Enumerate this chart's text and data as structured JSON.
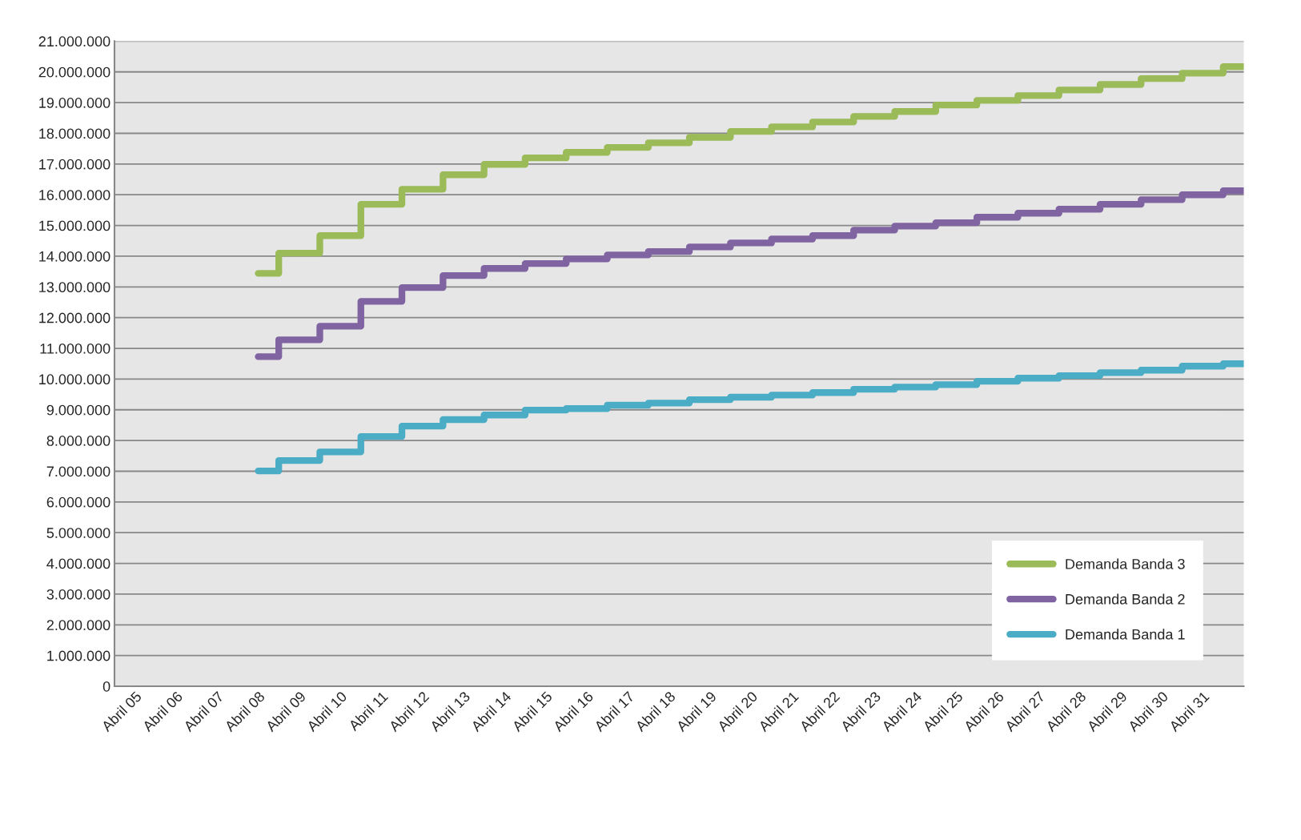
{
  "chart_data": {
    "type": "step",
    "categories": [
      "Abril 05",
      "Abril 06",
      "Abril 07",
      "Abril 08",
      "Abril 09",
      "Abril 10",
      "Abril 11",
      "Abril 12",
      "Abril 13",
      "Abril 14",
      "Abril 15",
      "Abril 16",
      "Abril 17",
      "Abril 18",
      "Abril 19",
      "Abril 20",
      "Abril 21",
      "Abril 22",
      "Abril 23",
      "Abril 24",
      "Abril 25",
      "Abril 26",
      "Abril 27",
      "Abril 28",
      "Abril 29",
      "Abril 30",
      "Abril 31",
      null
    ],
    "series": [
      {
        "name": "Demanda Banda 3",
        "color": "#9bbb59",
        "values": [
          null,
          null,
          null,
          13440000,
          14100000,
          14670000,
          15690000,
          16180000,
          16650000,
          16990000,
          17200000,
          17380000,
          17540000,
          17690000,
          17870000,
          18060000,
          18210000,
          18370000,
          18550000,
          18710000,
          18920000,
          19070000,
          19230000,
          19410000,
          19590000,
          19780000,
          19960000,
          20170000
        ]
      },
      {
        "name": "Demanda Banda 2",
        "color": "#8064a2",
        "values": [
          null,
          null,
          null,
          10730000,
          11280000,
          11720000,
          12530000,
          12980000,
          13370000,
          13600000,
          13760000,
          13910000,
          14040000,
          14150000,
          14300000,
          14430000,
          14560000,
          14670000,
          14850000,
          14980000,
          15090000,
          15270000,
          15400000,
          15530000,
          15690000,
          15840000,
          16000000,
          16130000
        ]
      },
      {
        "name": "Demanda Banda 1",
        "color": "#4bacc6",
        "values": [
          null,
          null,
          null,
          7010000,
          7350000,
          7630000,
          8130000,
          8470000,
          8680000,
          8830000,
          8990000,
          9040000,
          9150000,
          9220000,
          9330000,
          9410000,
          9480000,
          9560000,
          9670000,
          9740000,
          9820000,
          9930000,
          10030000,
          10110000,
          10210000,
          10290000,
          10420000,
          10500000
        ]
      }
    ],
    "ylim": [
      0,
      21000000
    ],
    "yticks": [
      0,
      {
        "value": 1000000,
        "label": "1.000.000"
      },
      {
        "value": 2000000,
        "label": "2.000.000"
      },
      {
        "value": 3000000,
        "label": "3.000.000"
      },
      {
        "value": 4000000,
        "label": "4.000.000"
      },
      {
        "value": 5000000,
        "label": "5.000.000"
      },
      {
        "value": 6000000,
        "label": "6.000.000"
      },
      {
        "value": 7000000,
        "label": "7.000.000"
      },
      {
        "value": 8000000,
        "label": "8.000.000"
      },
      {
        "value": 9000000,
        "label": "9.000.000"
      },
      {
        "value": 10000000,
        "label": "10.000.000"
      },
      {
        "value": 11000000,
        "label": "11.000.000"
      },
      {
        "value": 12000000,
        "label": "12.000.000"
      },
      {
        "value": 13000000,
        "label": "13.000.000"
      },
      {
        "value": 14000000,
        "label": "14.000.000"
      },
      {
        "value": 15000000,
        "label": "15.000.000"
      },
      {
        "value": 16000000,
        "label": "16.000.000"
      },
      {
        "value": 17000000,
        "label": "17.000.000"
      },
      {
        "value": 18000000,
        "label": "18.000.000"
      },
      {
        "value": 19000000,
        "label": "19.000.000"
      },
      {
        "value": 20000000,
        "label": "20.000.000"
      },
      {
        "value": 21000000,
        "label": "21.000.000"
      }
    ],
    "grid": "y",
    "legend": "bottom right",
    "line_style": "solid",
    "marker": "none"
  }
}
